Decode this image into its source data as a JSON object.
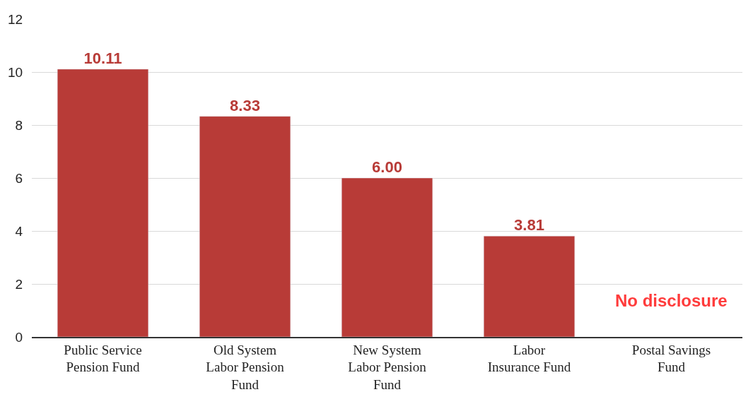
{
  "chart_data": {
    "type": "bar",
    "categories": [
      "Public Service Pension Fund",
      "Old System Labor Pension Fund",
      "New System Labor Pension Fund",
      "Labor Insurance Fund",
      "Postal Savings Fund"
    ],
    "values": [
      10.11,
      8.33,
      6.0,
      3.81,
      null
    ],
    "value_labels": [
      "10.11",
      "8.33",
      "6.00",
      "3.81",
      null
    ],
    "color": "#b83b37",
    "ylim": [
      0,
      12
    ],
    "yticks": [
      0,
      2,
      4,
      6,
      8,
      10,
      12
    ],
    "grid": "y",
    "annotations": [
      "No disclosure"
    ]
  }
}
